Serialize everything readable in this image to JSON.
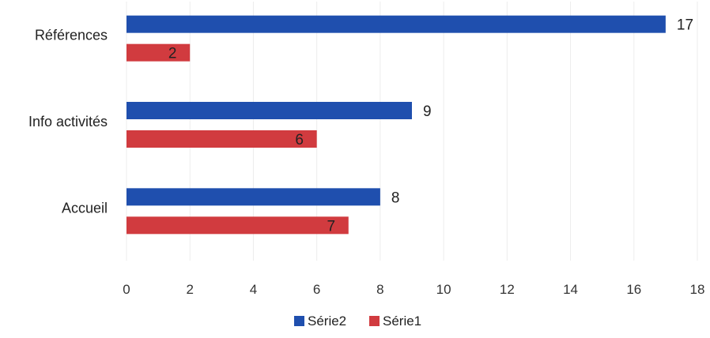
{
  "chart_data": {
    "type": "bar",
    "orientation": "horizontal",
    "categories": [
      "Accueil",
      "Info activités",
      "Références"
    ],
    "series": [
      {
        "name": "Série2",
        "values": [
          8,
          9,
          17
        ],
        "color": "#1f4fae"
      },
      {
        "name": "Série1",
        "values": [
          7,
          6,
          2
        ],
        "color": "#d13b3f"
      }
    ],
    "xlim": [
      0,
      18
    ],
    "xticks": [
      0,
      2,
      4,
      6,
      8,
      10,
      12,
      14,
      16,
      18
    ],
    "grid": true,
    "legend": {
      "position": "bottom",
      "order": [
        "Série2",
        "Série1"
      ]
    },
    "data_labels": true
  }
}
